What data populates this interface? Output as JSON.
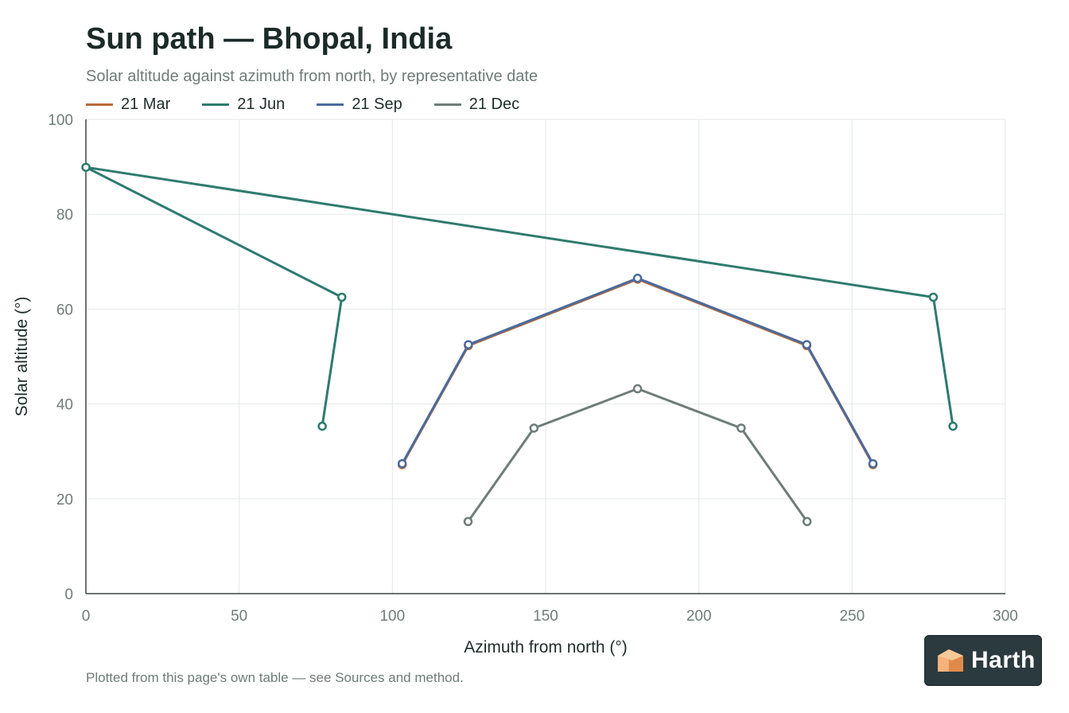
{
  "header": {
    "title": "Sun path — Bhopal, India",
    "subtitle": "Solar altitude against azimuth from north, by representative date"
  },
  "footnote": "Plotted from this page's own table — see Sources and method.",
  "brand": {
    "name": "Harth",
    "logo_icon": "house-cube-icon",
    "logo_color": "#f0a060"
  },
  "chart_data": {
    "type": "line",
    "xlabel": "Azimuth from north (°)",
    "ylabel": "Solar altitude (°)",
    "xlim": [
      0,
      300
    ],
    "ylim": [
      0,
      100
    ],
    "xticks": [
      0,
      50,
      100,
      150,
      200,
      250,
      300
    ],
    "yticks": [
      0,
      20,
      40,
      60,
      80,
      100
    ],
    "grid": true,
    "legend": "top-left",
    "series": [
      {
        "name": "21 Mar",
        "color": "#b86a3a",
        "points": [
          [
            103.2,
            27.2
          ],
          [
            124.8,
            52.3
          ],
          [
            180,
            66.3
          ],
          [
            235.2,
            52.3
          ],
          [
            256.8,
            27.2
          ]
        ]
      },
      {
        "name": "21 Jun",
        "color": "#2e7b6e",
        "points": [
          [
            77.1,
            35.3
          ],
          [
            83.5,
            62.5
          ],
          [
            0,
            89.9
          ],
          [
            276.5,
            62.5
          ],
          [
            282.9,
            35.3
          ]
        ]
      },
      {
        "name": "21 Sep",
        "color": "#4a6a9c",
        "points": [
          [
            103.2,
            27.4
          ],
          [
            124.8,
            52.5
          ],
          [
            180,
            66.5
          ],
          [
            235.2,
            52.5
          ],
          [
            256.8,
            27.4
          ]
        ]
      },
      {
        "name": "21 Dec",
        "color": "#6f7c79",
        "points": [
          [
            124.7,
            15.2
          ],
          [
            146.2,
            34.9
          ],
          [
            180,
            43.2
          ],
          [
            213.8,
            34.9
          ],
          [
            235.3,
            15.2
          ]
        ]
      }
    ]
  }
}
